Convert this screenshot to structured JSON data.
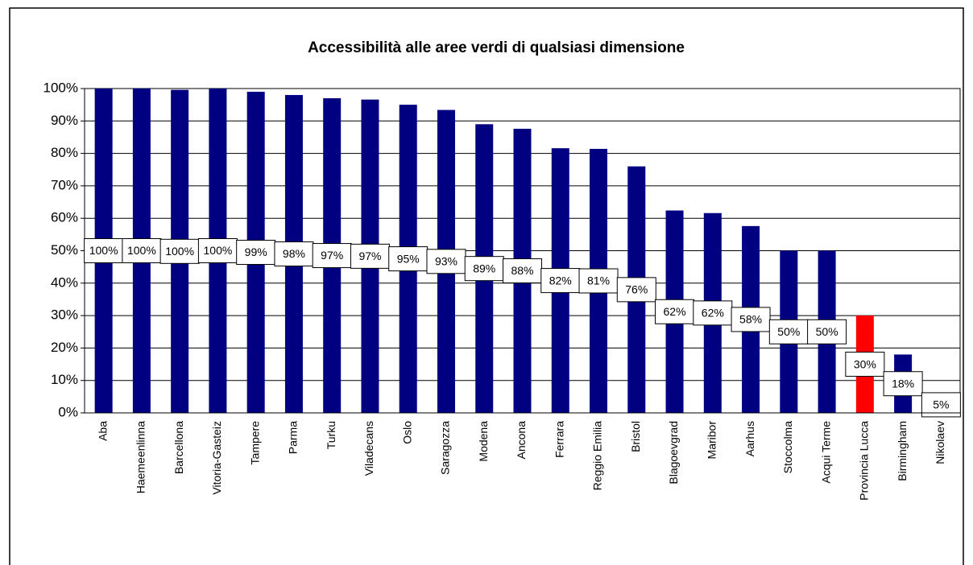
{
  "chart_data": {
    "type": "bar",
    "title": "Accessibilità alle aree verdi di qualsiasi dimensione",
    "categories": [
      "Aba",
      "Haemeenlinna",
      "Barcellona",
      "Vitoria-Gasteiz",
      "Tampere",
      "Parma",
      "Turku",
      "Viladecans",
      "Oslo",
      "Saragozza",
      "Modena",
      "Ancona",
      "Ferrara",
      "Reggio Emilia",
      "Bristol",
      "Blagoevgrad",
      "Maribor",
      "Aarhus",
      "Stoccolma",
      "Acqui Terme",
      "Provincia Lucca",
      "Birmingham",
      "Nikolaev"
    ],
    "values": [
      100,
      100,
      99.6,
      100,
      99,
      98,
      97,
      96.6,
      95,
      93.4,
      89,
      87.6,
      81.6,
      81.4,
      76,
      62.4,
      61.6,
      57.6,
      50,
      50,
      30,
      18,
      5
    ],
    "value_labels": [
      "100%",
      "100%",
      "100%",
      "100%",
      "99%",
      "98%",
      "97%",
      "97%",
      "95%",
      "93%",
      "89%",
      "88%",
      "82%",
      "81%",
      "76%",
      "62%",
      "62%",
      "58%",
      "50%",
      "50%",
      "30%",
      "18%",
      "5%"
    ],
    "colors": [
      "#000080",
      "#000080",
      "#000080",
      "#000080",
      "#000080",
      "#000080",
      "#000080",
      "#000080",
      "#000080",
      "#000080",
      "#000080",
      "#000080",
      "#000080",
      "#000080",
      "#000080",
      "#000080",
      "#000080",
      "#000080",
      "#000080",
      "#000080",
      "#ff0000",
      "#000080",
      "#000080"
    ],
    "ylim": [
      0,
      100
    ],
    "yticks": [
      {
        "value": 0,
        "label": "0%"
      },
      {
        "value": 10,
        "label": "10%"
      },
      {
        "value": 20,
        "label": "20%"
      },
      {
        "value": 30,
        "label": "30%"
      },
      {
        "value": 40,
        "label": "40%"
      },
      {
        "value": 50,
        "label": "50%"
      },
      {
        "value": 60,
        "label": "60%"
      },
      {
        "value": 70,
        "label": "70%"
      },
      {
        "value": 80,
        "label": "80%"
      },
      {
        "value": 90,
        "label": "90%"
      },
      {
        "value": 100,
        "label": "100%"
      }
    ],
    "grid": true
  }
}
